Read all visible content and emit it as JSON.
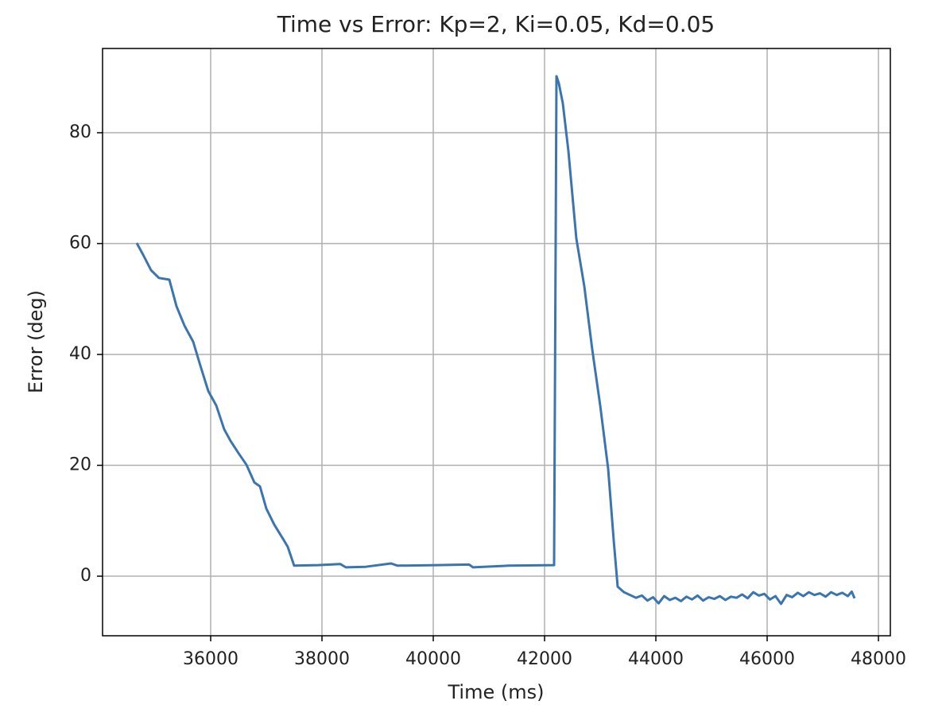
{
  "chart_data": {
    "type": "line",
    "title": "Time vs Error: Kp=2, Ki=0.05, Kd=0.05",
    "x_label": "Time (ms)",
    "y_label": "Error (deg)",
    "xlim": [
      34057,
      48214
    ],
    "ylim": [
      -10.75,
      95.2
    ],
    "xticks": [
      36000,
      38000,
      40000,
      42000,
      44000,
      46000,
      48000
    ],
    "yticks": [
      0,
      20,
      40,
      60,
      80
    ],
    "grid": true,
    "x": [
      34671,
      34786,
      34929,
      35071,
      35257,
      35386,
      35529,
      35686,
      35814,
      35957,
      36100,
      36243,
      36357,
      36500,
      36643,
      36786,
      36886,
      37000,
      37143,
      37314,
      37386,
      37500,
      37929,
      38329,
      38429,
      38786,
      39243,
      39357,
      40071,
      40643,
      40714,
      41357,
      42171,
      42214,
      42257,
      42329,
      42429,
      42571,
      42714,
      42857,
      43000,
      43143,
      43243,
      43314,
      43429,
      43643,
      43750,
      43850,
      43950,
      44050,
      44150,
      44250,
      44350,
      44450,
      44550,
      44650,
      44750,
      44850,
      44950,
      45050,
      45150,
      45250,
      45350,
      45450,
      45550,
      45650,
      45750,
      45850,
      45950,
      46050,
      46150,
      46250,
      46350,
      46450,
      46550,
      46650,
      46750,
      46850,
      46950,
      47050,
      47150,
      47250,
      47350,
      47450,
      47520,
      47571
    ],
    "series": [
      {
        "color": "#3a75af",
        "values": [
          60.1,
          58,
          55.2,
          53.8,
          53.5,
          48.7,
          45.2,
          42.3,
          38,
          33.4,
          30.8,
          26.5,
          24.4,
          22.2,
          20.1,
          16.9,
          16.2,
          12.2,
          9.3,
          6.5,
          5.3,
          1.9,
          2.0,
          2.2,
          1.6,
          1.7,
          2.3,
          1.9,
          2.0,
          2.1,
          1.6,
          1.9,
          2.0,
          90.2,
          88.9,
          85.3,
          76.7,
          60.9,
          52.3,
          40.9,
          30.8,
          19.4,
          6.5,
          -1.9,
          -2.9,
          -3.9,
          -3.5,
          -4.4,
          -3.8,
          -4.9,
          -3.6,
          -4.3,
          -3.9,
          -4.5,
          -3.7,
          -4.2,
          -3.5,
          -4.4,
          -3.8,
          -4.1,
          -3.6,
          -4.3,
          -3.7,
          -3.9,
          -3.3,
          -4.0,
          -2.9,
          -3.5,
          -3.2,
          -4.2,
          -3.6,
          -5.0,
          -3.4,
          -3.8,
          -3.0,
          -3.6,
          -2.9,
          -3.4,
          -3.1,
          -3.7,
          -2.9,
          -3.4,
          -3.0,
          -3.6,
          -2.8,
          -4.0
        ]
      }
    ]
  }
}
